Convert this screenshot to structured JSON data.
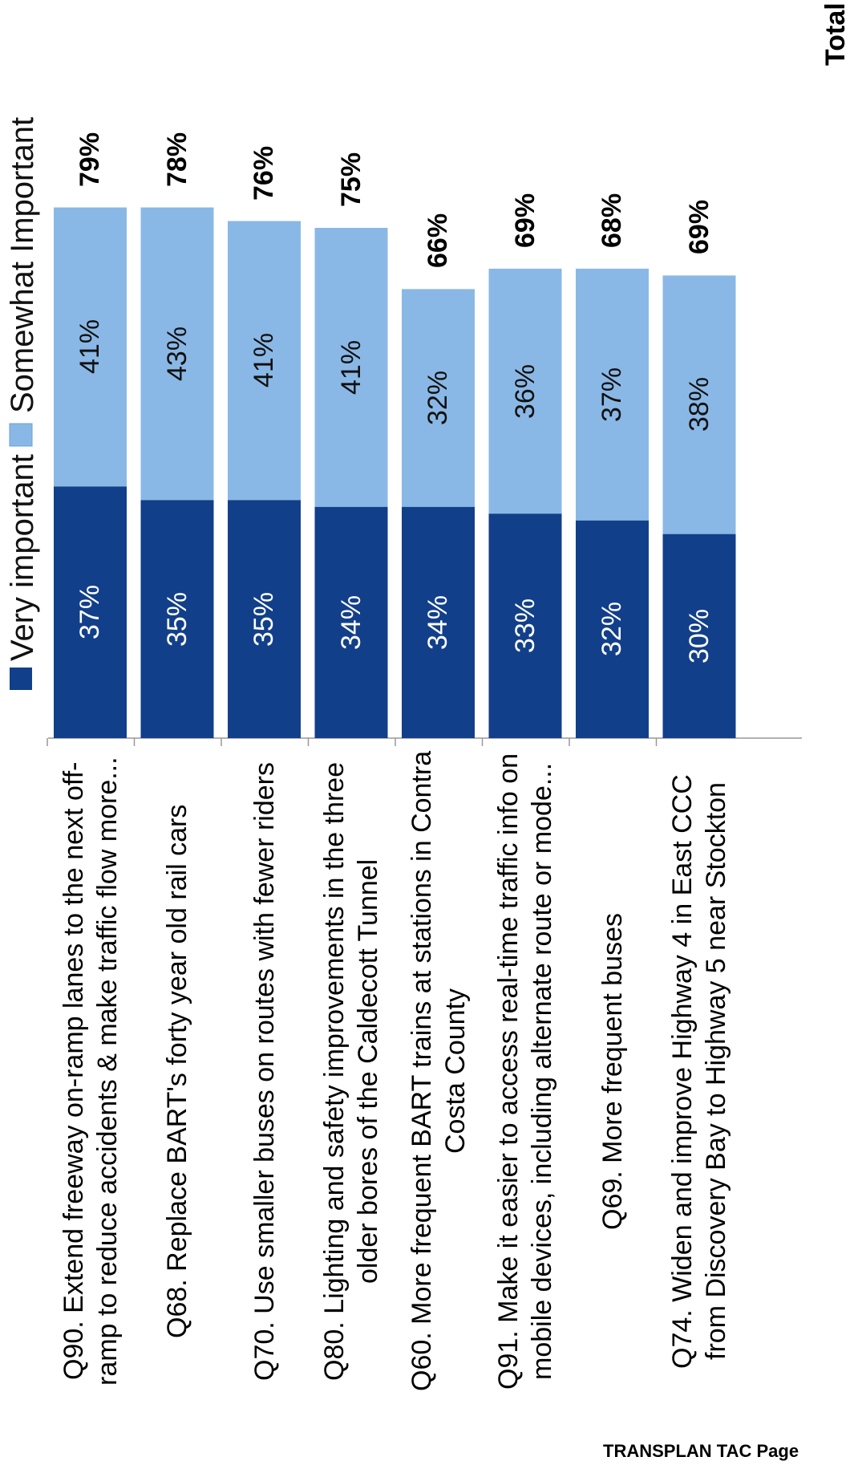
{
  "chart_data": {
    "type": "bar",
    "orientation": "horizontal-stacked",
    "categories": [
      "Q90.  Extend freeway on-ramp lanes to the next off-ramp to reduce accidents & make traffic flow more...",
      "Q68.  Replace BART's forty year old rail cars",
      "Q70.  Use smaller buses on routes with fewer riders",
      "Q80.  Lighting and safety improvements in the three older bores of the Caldecott Tunnel",
      "Q60.  More frequent BART trains at stations in Contra Costa County",
      "Q91.  Make it easier to access real-time traffic info on mobile devices, including alternate route or mode...",
      "Q69.  More frequent buses",
      "Q74.  Widen and improve Highway 4 in East CCC from Discovery Bay to Highway 5 near Stockton"
    ],
    "category_lines": [
      [
        "Q90.  Extend freeway on-ramp lanes to the next off-",
        "ramp to reduce accidents & make traffic flow more..."
      ],
      [
        "Q68.  Replace BART's forty year old rail cars"
      ],
      [
        "Q70.  Use smaller buses on routes with fewer riders"
      ],
      [
        "Q80.  Lighting and safety improvements in the three",
        "older bores of the Caldecott Tunnel"
      ],
      [
        "Q60.  More frequent BART trains at stations in Contra",
        "Costa County"
      ],
      [
        "Q91.  Make it easier to access real-time traffic info on",
        "mobile devices, including alternate route or mode..."
      ],
      [
        "Q69.  More frequent buses"
      ],
      [
        "Q74.  Widen and improve Highway 4 in East CCC",
        "from Discovery Bay to Highway 5 near Stockton"
      ]
    ],
    "series": [
      {
        "name": "Very important",
        "values": [
          37,
          35,
          35,
          34,
          34,
          33,
          32,
          30
        ],
        "labels": [
          "37%",
          "35%",
          "35%",
          "34%",
          "34%",
          "33%",
          "32%",
          "30%"
        ],
        "color": "#123f8a"
      },
      {
        "name": "Somewhat Important",
        "values": [
          41,
          43,
          41,
          41,
          32,
          36,
          37,
          38
        ],
        "labels": [
          "41%",
          "43%",
          "41%",
          "41%",
          "32%",
          "36%",
          "37%",
          "38%"
        ],
        "color": "#8ab8e6"
      }
    ],
    "totals": [
      79,
      78,
      76,
      75,
      66,
      69,
      68,
      69
    ],
    "total_labels": [
      "79%",
      "78%",
      "76%",
      "75%",
      "66%",
      "69%",
      "68%",
      "69%"
    ],
    "total_title": "Total",
    "legend": {
      "position": "top"
    },
    "grid": false
  },
  "footer": {
    "text": "TRANSPLAN TAC Page"
  }
}
